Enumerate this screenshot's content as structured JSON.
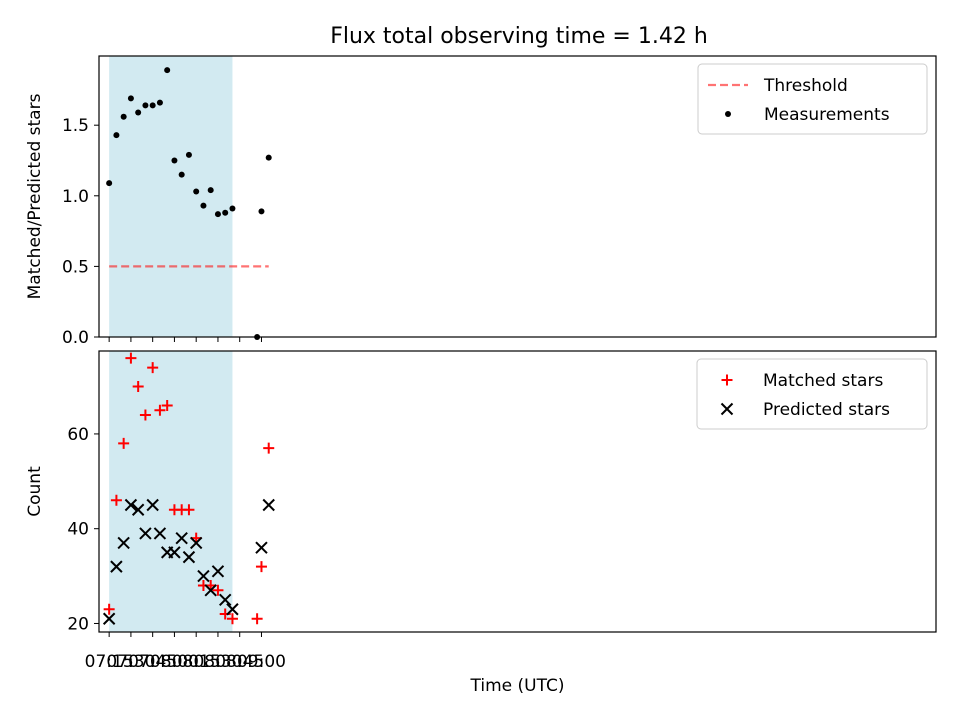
{
  "title": "Flux total observing time = 1.42 h",
  "colors": {
    "shade": "#add8e6",
    "threshold": "#ff0000",
    "measurement": "#000000",
    "matched": "#ff0000",
    "predicted": "#000000"
  },
  "chart_data": [
    {
      "type": "scatter",
      "panel": "top",
      "title": "Flux total observing time = 1.42 h",
      "xlabel": "",
      "ylabel": "Matched/Predicted stars",
      "x_range_minutes": [
        428,
        1005
      ],
      "ylim": [
        0,
        1.99
      ],
      "y_ticks": [
        "0.0",
        "0.5",
        "1.0",
        "1.5"
      ],
      "y_tick_values": [
        0,
        0.5,
        1.0,
        1.5
      ],
      "shaded_span_minutes": [
        435,
        520
      ],
      "threshold": {
        "label": "Threshold",
        "value": 0.5,
        "x_range_minutes": [
          435,
          545
        ],
        "style": "dashed"
      },
      "legend": [
        "Threshold",
        "Measurements"
      ],
      "legend_position": "top-right",
      "series": [
        {
          "name": "Measurements",
          "x_minutes": [
            435,
            440,
            445,
            450,
            455,
            460,
            465,
            470,
            475,
            480,
            485,
            490,
            495,
            500,
            505,
            510,
            515,
            520,
            537,
            540,
            545
          ],
          "values": [
            1.09,
            1.43,
            1.56,
            1.69,
            1.59,
            1.64,
            1.64,
            1.66,
            1.89,
            1.25,
            1.15,
            1.29,
            1.03,
            0.93,
            1.04,
            0.87,
            0.88,
            0.91,
            0.0,
            0.89,
            1.27
          ]
        }
      ]
    },
    {
      "type": "scatter",
      "panel": "bottom",
      "xlabel": "Time (UTC)",
      "ylabel": "Count",
      "x_range_minutes": [
        428,
        1005
      ],
      "x_ticks": [
        "07:15",
        "07:30",
        "07:45",
        "08:00",
        "08:15",
        "08:30",
        "08:45",
        "09:00"
      ],
      "x_tick_minutes": [
        435,
        450,
        465,
        480,
        495,
        510,
        525,
        540
      ],
      "ylim": [
        18.2,
        77.5
      ],
      "y_ticks": [
        "20",
        "40",
        "60"
      ],
      "y_tick_values": [
        20,
        40,
        60
      ],
      "shaded_span_minutes": [
        435,
        520
      ],
      "legend": [
        "Matched stars",
        "Predicted stars"
      ],
      "legend_position": "top-right",
      "series": [
        {
          "name": "Matched stars",
          "marker": "+",
          "x_minutes": [
            435,
            440,
            445,
            450,
            455,
            460,
            465,
            470,
            475,
            480,
            485,
            490,
            495,
            500,
            505,
            510,
            515,
            520,
            537,
            540,
            545
          ],
          "values": [
            23,
            46,
            58,
            76,
            70,
            64,
            74,
            65,
            66,
            44,
            44,
            44,
            38,
            28,
            28,
            27,
            22,
            21,
            21,
            32,
            57
          ]
        },
        {
          "name": "Predicted stars",
          "marker": "x",
          "x_minutes": [
            435,
            440,
            445,
            450,
            455,
            460,
            465,
            470,
            475,
            480,
            485,
            490,
            495,
            500,
            505,
            510,
            515,
            520,
            540,
            545
          ],
          "values": [
            21,
            32,
            37,
            45,
            44,
            39,
            45,
            39,
            35,
            35,
            38,
            34,
            37,
            30,
            27,
            31,
            25,
            23,
            36,
            45
          ]
        }
      ]
    }
  ]
}
